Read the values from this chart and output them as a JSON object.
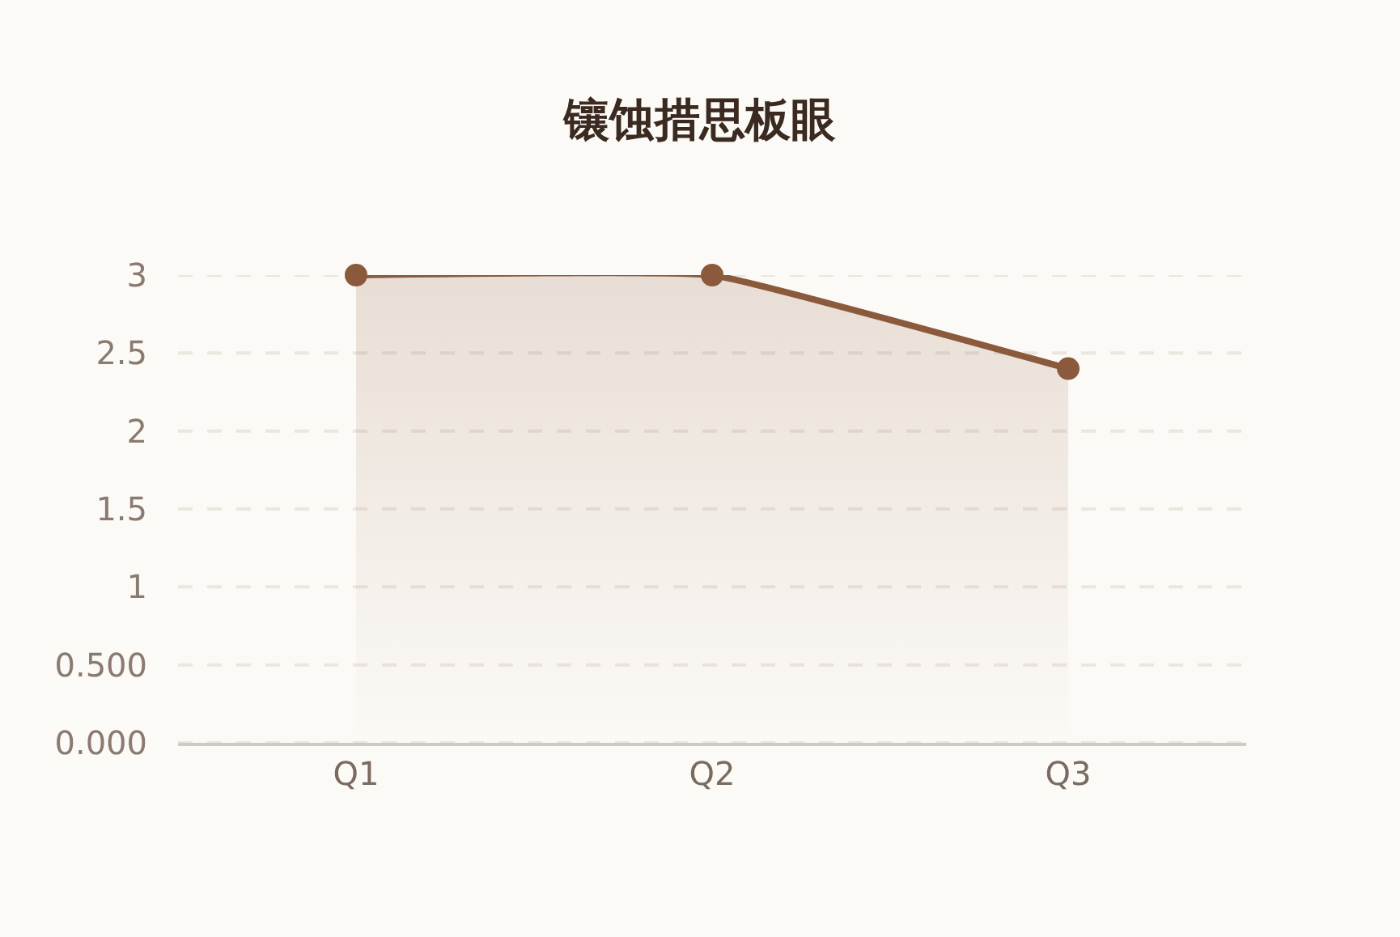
{
  "chart_data": {
    "type": "area",
    "title": "镶蚀措思板眼",
    "categories": [
      "Q1",
      "Q2",
      "Q3"
    ],
    "series": [
      {
        "color": "#8b5a3c",
        "values": [
          3,
          3,
          2.4
        ]
      }
    ],
    "ylim": [
      0,
      3
    ],
    "yticks": [
      {
        "value": 0,
        "label": "0.000"
      },
      {
        "value": 0.5,
        "label": "0.500"
      },
      1,
      1.5,
      2,
      2.5,
      3
    ],
    "grid": "y",
    "marker": "circle",
    "line_style": "solid"
  }
}
